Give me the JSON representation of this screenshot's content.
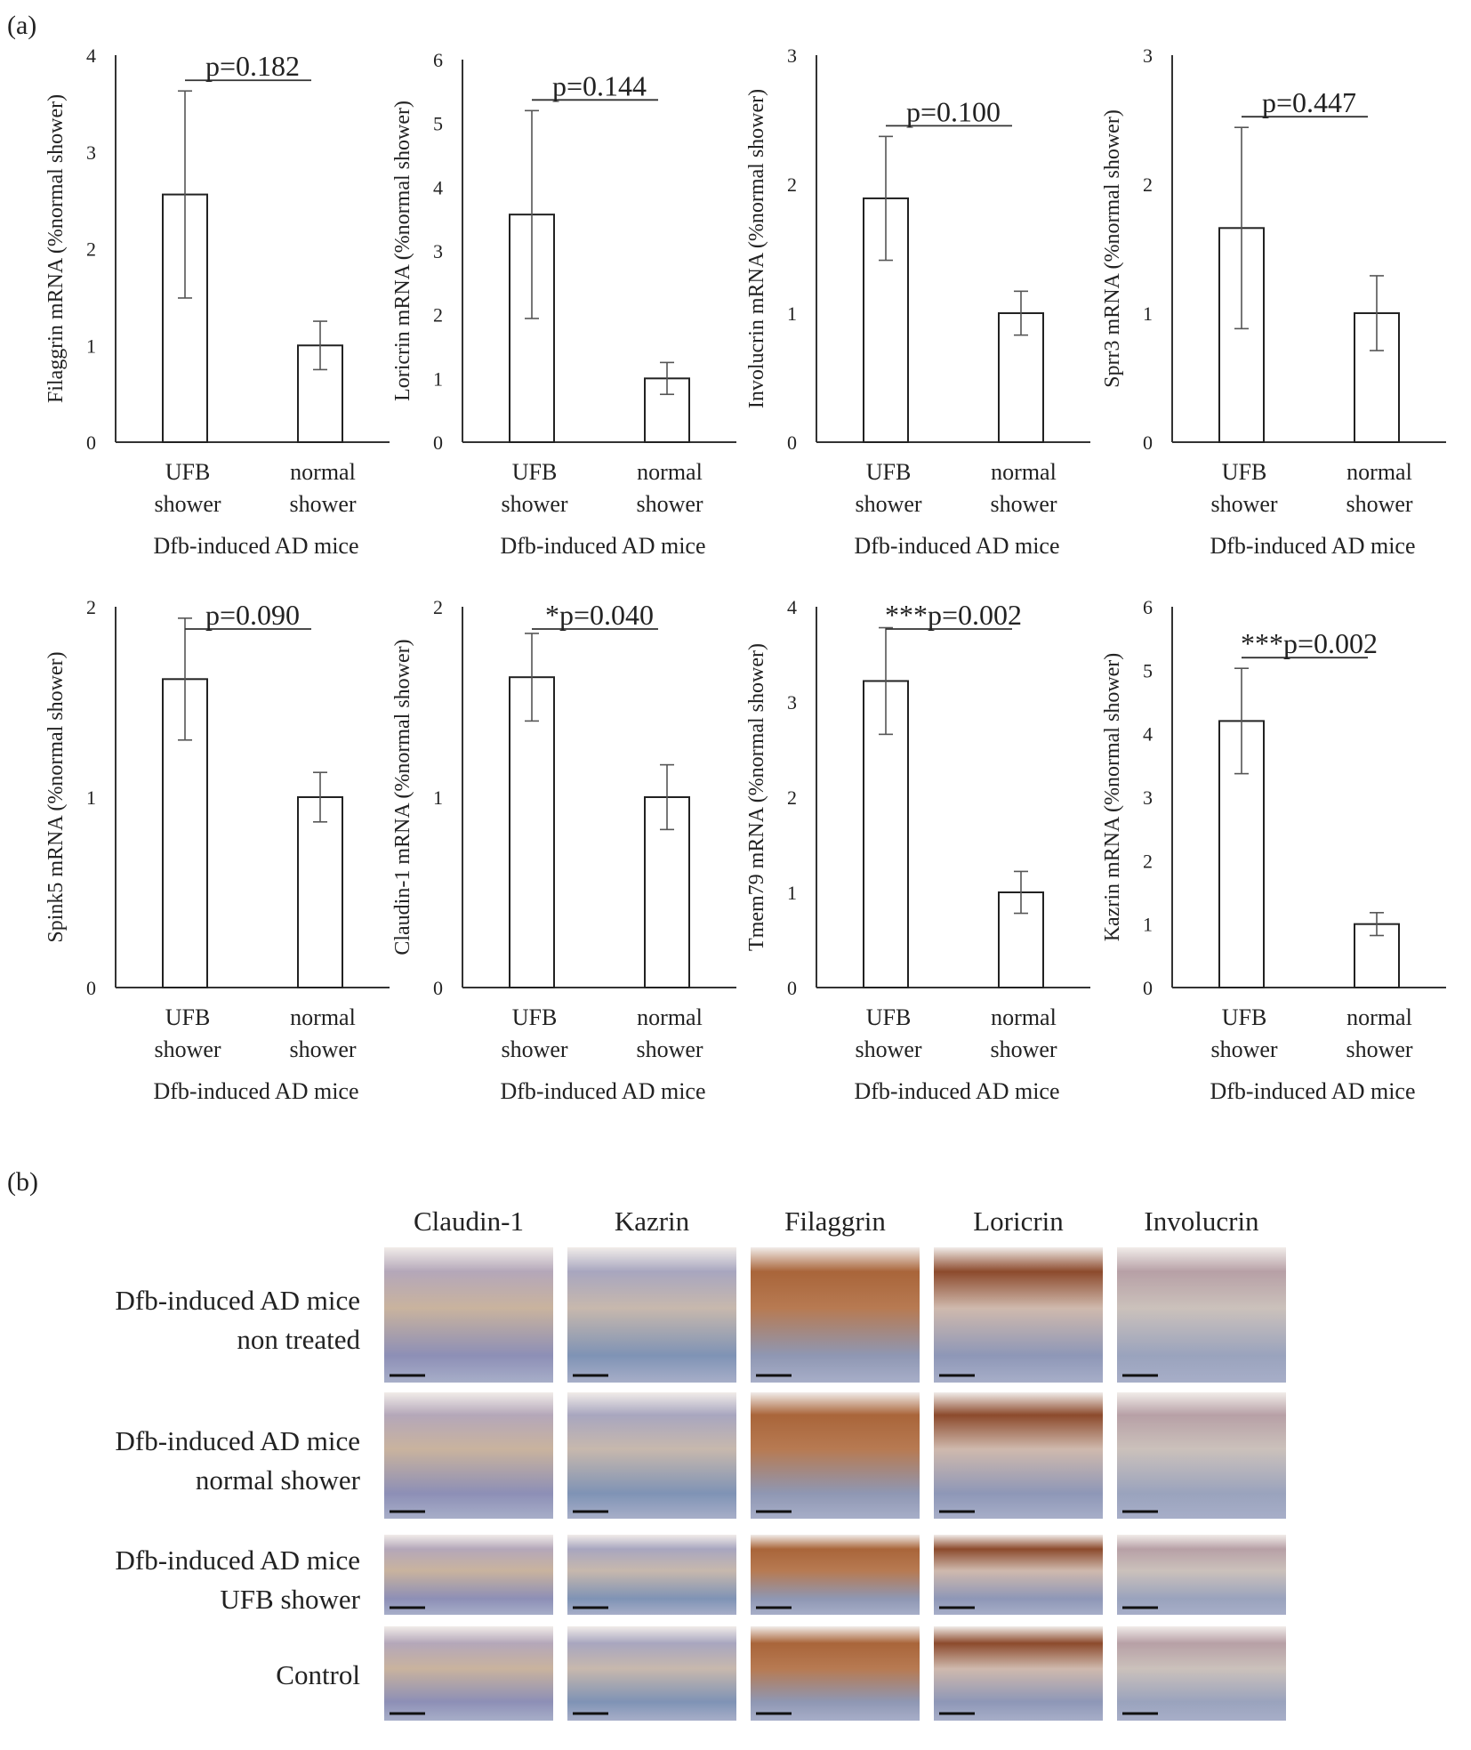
{
  "panel_a_label": "(a)",
  "panel_b_label": "(b)",
  "chart_data": [
    {
      "type": "bar",
      "ylabel": "Filaggrin mRNA (%normal shower)",
      "xgroup": "Dfb-induced AD mice",
      "categories": [
        "UFB shower",
        "normal shower"
      ],
      "values": [
        2.56,
        1.0
      ],
      "errors": [
        1.07,
        0.25
      ],
      "ylim": [
        0,
        4
      ],
      "yticks": [
        "0",
        "1",
        "2",
        "3",
        "4"
      ],
      "annotation": "p=0.182"
    },
    {
      "type": "bar",
      "ylabel": "Loricrin mRNA (%normal shower)",
      "xgroup": "Dfb-induced AD mice",
      "categories": [
        "UFB shower",
        "normal shower"
      ],
      "values": [
        3.57,
        1.0
      ],
      "errors": [
        1.63,
        0.25
      ],
      "ylim": [
        0,
        6
      ],
      "yticks": [
        "0",
        "1",
        "2",
        "3",
        "4",
        "5",
        "6"
      ],
      "annotation": "p=0.144"
    },
    {
      "type": "bar",
      "ylabel": "Involucrin mRNA (%normal shower)",
      "xgroup": "Dfb-induced AD mice",
      "categories": [
        "UFB shower",
        "normal shower"
      ],
      "values": [
        1.89,
        1.0
      ],
      "errors": [
        0.48,
        0.17
      ],
      "ylim": [
        0,
        3
      ],
      "yticks": [
        "0",
        "1",
        "2",
        "3"
      ],
      "annotation": "p=0.100"
    },
    {
      "type": "bar",
      "ylabel": "Sprr3 mRNA (%normal shower)",
      "xgroup": "Dfb-induced AD mice",
      "categories": [
        "UFB shower",
        "normal shower"
      ],
      "values": [
        1.66,
        1.0
      ],
      "errors": [
        0.78,
        0.29
      ],
      "ylim": [
        0,
        3
      ],
      "yticks": [
        "0",
        "1",
        "2",
        "3"
      ],
      "annotation": "p=0.447"
    },
    {
      "type": "bar",
      "ylabel": "Spink5 mRNA (%normal shower)",
      "xgroup": "Dfb-induced AD mice",
      "categories": [
        "UFB shower",
        "normal shower"
      ],
      "values": [
        1.62,
        1.0
      ],
      "errors": [
        0.32,
        0.13
      ],
      "ylim": [
        0,
        2
      ],
      "yticks": [
        "0",
        "1",
        "2"
      ],
      "annotation": "p=0.090"
    },
    {
      "type": "bar",
      "ylabel": "Claudin-1 mRNA (%normal shower)",
      "xgroup": "Dfb-induced AD mice",
      "categories": [
        "UFB shower",
        "normal shower"
      ],
      "values": [
        1.63,
        1.0
      ],
      "errors": [
        0.23,
        0.17
      ],
      "ylim": [
        0,
        2
      ],
      "yticks": [
        "0",
        "1",
        "2"
      ],
      "annotation": "*p=0.040"
    },
    {
      "type": "bar",
      "ylabel": "Tmem79 mRNA (%normal shower)",
      "xgroup": "Dfb-induced AD mice",
      "categories": [
        "UFB shower",
        "normal shower"
      ],
      "values": [
        3.22,
        1.0
      ],
      "errors": [
        0.56,
        0.22
      ],
      "ylim": [
        0,
        4
      ],
      "yticks": [
        "0",
        "1",
        "2",
        "3",
        "4"
      ],
      "annotation": "***p=0.002"
    },
    {
      "type": "bar",
      "ylabel": "Kazrin mRNA (%normal shower)",
      "xgroup": "Dfb-induced AD mice",
      "categories": [
        "UFB shower",
        "normal shower"
      ],
      "values": [
        4.2,
        1.0
      ],
      "errors": [
        0.83,
        0.18
      ],
      "ylim": [
        0,
        6
      ],
      "yticks": [
        "0",
        "1",
        "2",
        "3",
        "4",
        "5",
        "6"
      ],
      "annotation": "***p=0.002"
    }
  ],
  "histology": {
    "columns": [
      "Claudin-1",
      "Kazrin",
      "Filaggrin",
      "Loricrin",
      "Involucrin"
    ],
    "rows": [
      {
        "line1": "Dfb-induced AD mice",
        "line2": "non treated"
      },
      {
        "line1": "Dfb-induced AD mice",
        "line2": "normal shower"
      },
      {
        "line1": "Dfb-induced AD mice",
        "line2": "UFB shower"
      },
      {
        "line1": "Control",
        "line2": ""
      }
    ]
  }
}
